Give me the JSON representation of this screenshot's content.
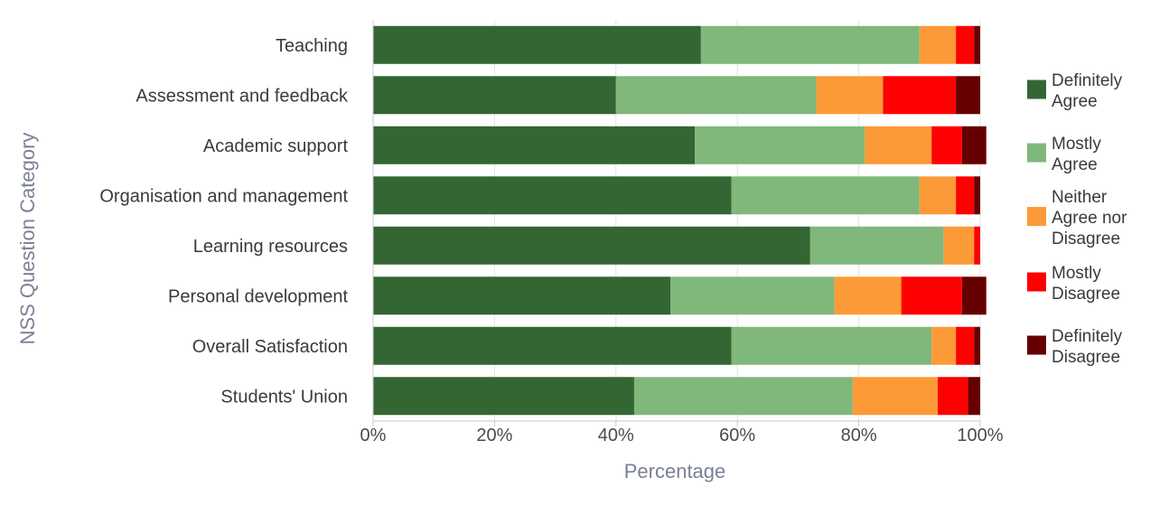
{
  "chart_data": {
    "type": "bar",
    "orientation": "horizontal",
    "stacked": true,
    "title": "",
    "xlabel": "Percentage",
    "ylabel": "NSS Question Category",
    "xlim": [
      0,
      100
    ],
    "x_ticks": [
      "0%",
      "20%",
      "40%",
      "60%",
      "80%",
      "100%"
    ],
    "grid": true,
    "legend_position": "right",
    "categories": [
      "Teaching",
      "Assessment and feedback",
      "Academic support",
      "Organisation and management",
      "Learning resources",
      "Personal development",
      "Overall Satisfaction",
      "Students' Union"
    ],
    "series": [
      {
        "name": "Definitely Agree",
        "legend_lines": [
          "Definitely",
          "Agree"
        ],
        "color": "#336633",
        "values": [
          54,
          40,
          53,
          59,
          72,
          49,
          59,
          43
        ]
      },
      {
        "name": "Mostly Agree",
        "legend_lines": [
          "Mostly",
          "Agree"
        ],
        "color": "#80b77a",
        "values": [
          36,
          33,
          28,
          31,
          22,
          27,
          33,
          36
        ]
      },
      {
        "name": "Neither Agree nor Disagree",
        "legend_lines": [
          "Neither",
          "Agree nor",
          "Disagree"
        ],
        "color": "#fd9a38",
        "values": [
          6,
          11,
          11,
          6,
          5,
          11,
          4,
          14
        ]
      },
      {
        "name": "Mostly Disagree",
        "legend_lines": [
          "Mostly",
          "Disagree"
        ],
        "color": "#fe0000",
        "values": [
          3,
          12,
          5,
          3,
          1,
          10,
          3,
          5
        ]
      },
      {
        "name": "Definitely Disagree",
        "legend_lines": [
          "Definitely",
          "Disagree"
        ],
        "color": "#660000",
        "values": [
          1,
          4,
          4,
          1,
          0,
          4,
          1,
          2
        ]
      }
    ]
  }
}
